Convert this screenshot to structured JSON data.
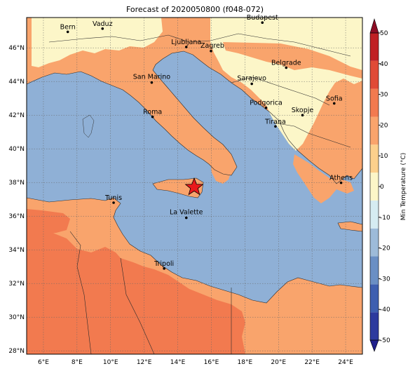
{
  "title": "Forecast of 2020050800 (f048-072)",
  "colorbar": {
    "label": "Min Temperature (°C)",
    "ticks": [
      "-50",
      "-40",
      "-30",
      "-20",
      "-10",
      "0",
      "10",
      "20",
      "30",
      "40",
      "50"
    ],
    "colors": [
      "#1f1f8c",
      "#2d3a9e",
      "#3e5fb0",
      "#6a8fc4",
      "#9dbbd9",
      "#d6ecf2",
      "#fcf6c8",
      "#fcd08c",
      "#f9a46c",
      "#f27a4f",
      "#e04a36",
      "#c02024",
      "#8c0d24"
    ]
  },
  "axes": {
    "lon_ticks": [
      "6°E",
      "8°E",
      "10°E",
      "12°E",
      "14°E",
      "16°E",
      "18°E",
      "20°E",
      "22°E",
      "24°E"
    ],
    "lat_ticks": [
      "46°N",
      "44°N",
      "42°N",
      "40°N",
      "38°N",
      "36°N",
      "34°N",
      "32°N",
      "30°N",
      "28°N"
    ]
  },
  "cities": [
    {
      "name": "Bern"
    },
    {
      "name": "Vaduz"
    },
    {
      "name": "Budapest"
    },
    {
      "name": "Ljubljana"
    },
    {
      "name": "Zagreb"
    },
    {
      "name": "Belgrade"
    },
    {
      "name": "San Marino"
    },
    {
      "name": "Sarajevo"
    },
    {
      "name": "Sofia"
    },
    {
      "name": "Podgorica"
    },
    {
      "name": "Skopje"
    },
    {
      "name": "Roma"
    },
    {
      "name": "Tirana"
    },
    {
      "name": "Athens"
    },
    {
      "name": "Tunis"
    },
    {
      "name": "La Valette"
    },
    {
      "name": "Tripoli"
    }
  ],
  "marker": {
    "type": "star",
    "color": "#e8191b"
  },
  "field_colors": {
    "sea": "#8fb0d6",
    "land_warm": "#f9a46c",
    "land_hot": "#f27a4f",
    "land_cool": "#fcf6c8"
  }
}
